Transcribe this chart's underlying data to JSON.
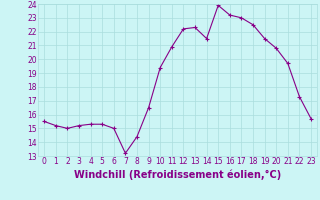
{
  "x": [
    0,
    1,
    2,
    3,
    4,
    5,
    6,
    7,
    8,
    9,
    10,
    11,
    12,
    13,
    14,
    15,
    16,
    17,
    18,
    19,
    20,
    21,
    22,
    23
  ],
  "y": [
    15.5,
    15.2,
    15.0,
    15.2,
    15.3,
    15.3,
    15.0,
    13.2,
    14.4,
    16.5,
    19.4,
    20.9,
    22.2,
    22.3,
    21.5,
    23.9,
    23.2,
    23.0,
    22.5,
    21.5,
    20.8,
    19.7,
    17.3,
    15.7
  ],
  "line_color": "#880088",
  "marker": "+",
  "xlabel": "Windchill (Refroidissement éolien,°C)",
  "bg_color": "#ccf5f5",
  "grid_color": "#aadddd",
  "ylim": [
    13,
    24
  ],
  "xlim": [
    -0.5,
    23.5
  ],
  "yticks": [
    13,
    14,
    15,
    16,
    17,
    18,
    19,
    20,
    21,
    22,
    23,
    24
  ],
  "xticks": [
    0,
    1,
    2,
    3,
    4,
    5,
    6,
    7,
    8,
    9,
    10,
    11,
    12,
    13,
    14,
    15,
    16,
    17,
    18,
    19,
    20,
    21,
    22,
    23
  ],
  "tick_color": "#880088",
  "label_color": "#880088",
  "tick_fontsize": 5.5,
  "xlabel_fontsize": 7.0,
  "marker_size": 3,
  "linewidth": 0.8
}
